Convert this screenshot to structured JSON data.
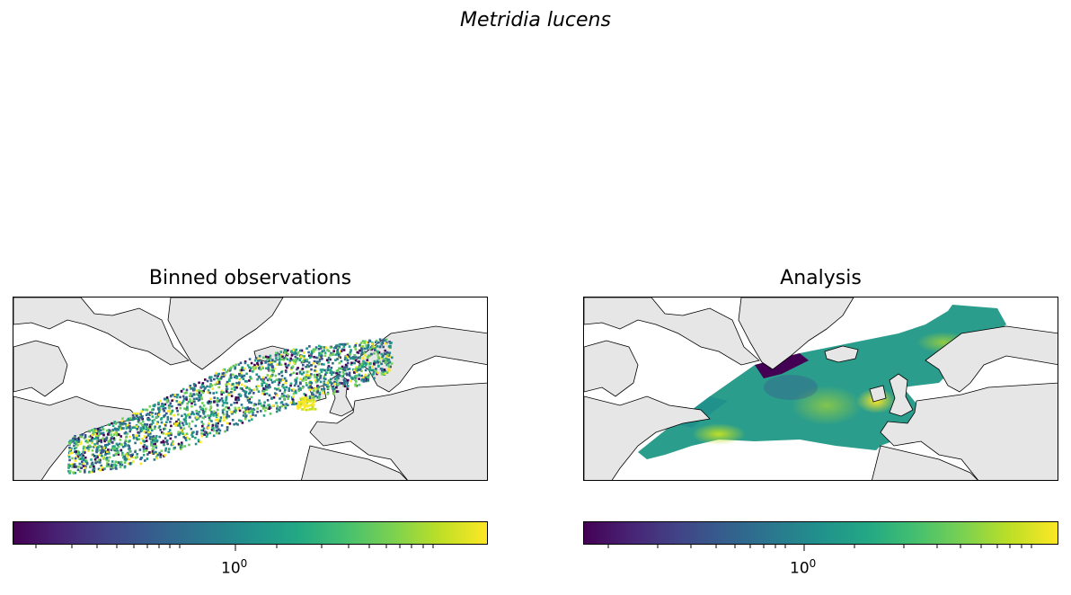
{
  "figure": {
    "suptitle": "Metridia lucens"
  },
  "panels": [
    {
      "title": "Binned observations",
      "colorbar": {
        "scale": "log",
        "colormap": "viridis",
        "major_tick_base": "10",
        "major_tick_exp": "0"
      }
    },
    {
      "title": "Analysis",
      "colorbar": {
        "scale": "log",
        "colormap": "viridis",
        "major_tick_base": "10",
        "major_tick_exp": "0"
      }
    }
  ],
  "colors": {
    "land": "#e6e6e6",
    "coast": "#000000",
    "ocean": "#ffffff"
  }
}
